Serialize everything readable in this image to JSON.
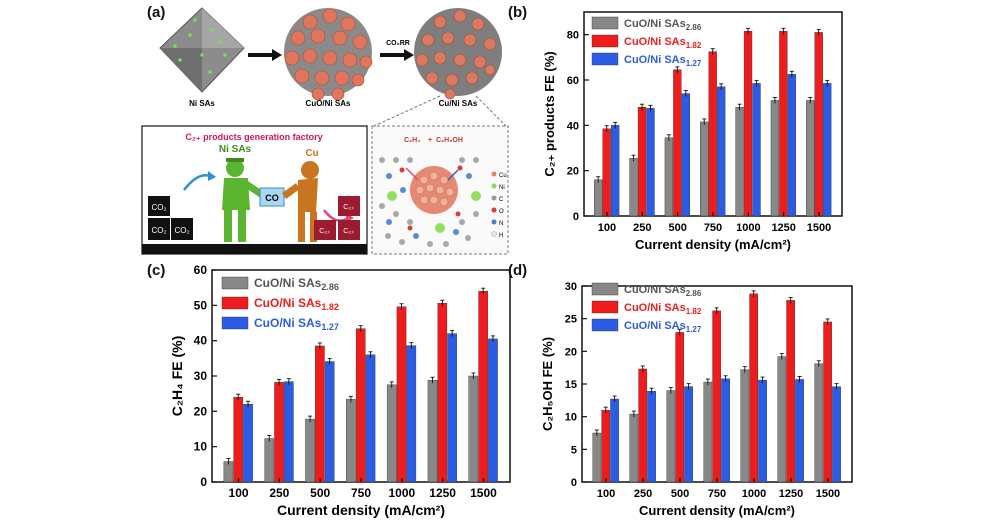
{
  "panels": {
    "a_label": "(a)",
    "b_label": "(b)",
    "c_label": "(c)",
    "d_label": "(d)"
  },
  "illustration": {
    "arrow_label": "CO₂RR",
    "caption_1": "Ni SAs",
    "caption_2": "CuO/Ni SAs",
    "caption_3": "Cu/Ni SAs",
    "factory_title": "C₂₊ products generation factory",
    "worker_1": "Ni SAs",
    "worker_2": "Cu",
    "co_box": "CO",
    "reactants": [
      "CO₂",
      "CO₂",
      "CO₂"
    ],
    "products": [
      "C₂₊",
      "C₂₊",
      "C₂₊"
    ],
    "zoom_formula_1": "C₂H₄",
    "zoom_plus": "+",
    "zoom_formula_2": "C₂H₅OH",
    "legend_atoms": [
      "Cu",
      "Ni",
      "C",
      "O",
      "N",
      "H"
    ],
    "atom_colors": [
      "#e8806a",
      "#8fd46a",
      "#9a9a9a",
      "#d93a3a",
      "#4a7cc9",
      "#e8e8e8"
    ]
  },
  "colors": {
    "gray": "#888888",
    "red": "#ee1c1c",
    "blue": "#2b5ce6"
  },
  "chart_data": [
    {
      "type": "bar",
      "panel": "(b)",
      "categories": [
        "100",
        "250",
        "500",
        "750",
        "1000",
        "1250",
        "1500"
      ],
      "xlabel": "Current density (mA/cm²)",
      "ylabel": "C₂₊ products FE (%)",
      "ylim": [
        0,
        90
      ],
      "yticks": [
        0,
        20,
        40,
        60,
        80
      ],
      "legend_position": "top-left",
      "series": [
        {
          "name": "CuO/Ni SAs",
          "subscript": "2.86",
          "color": "#888888",
          "values": [
            16,
            25.5,
            34.5,
            41.5,
            48,
            51,
            51
          ]
        },
        {
          "name": "CuO/Ni SAs",
          "subscript": "1.82",
          "color": "#ee1c1c",
          "values": [
            38.5,
            48,
            64.5,
            72.5,
            81.5,
            81.5,
            81
          ]
        },
        {
          "name": "CuO/Ni SAs",
          "subscript": "1.27",
          "color": "#2b5ce6",
          "values": [
            40,
            47.5,
            54,
            57,
            58.5,
            62.5,
            58.5
          ]
        }
      ]
    },
    {
      "type": "bar",
      "panel": "(c)",
      "categories": [
        "100",
        "250",
        "500",
        "750",
        "1000",
        "1250",
        "1500"
      ],
      "xlabel": "Current density (mA/cm²)",
      "ylabel": "C₂H₄ FE (%)",
      "ylim": [
        0,
        60
      ],
      "yticks": [
        0,
        10,
        20,
        30,
        40,
        50,
        60
      ],
      "legend_position": "top-left",
      "series": [
        {
          "name": "CuO/Ni SAs",
          "subscript": "2.86",
          "color": "#888888",
          "values": [
            5.8,
            12.3,
            17.8,
            23.4,
            27.5,
            28.8,
            30
          ]
        },
        {
          "name": "CuO/Ni SAs",
          "subscript": "1.82",
          "color": "#ee1c1c",
          "values": [
            24,
            28.2,
            38.5,
            43.4,
            49.6,
            50.6,
            54
          ]
        },
        {
          "name": "CuO/Ni SAs",
          "subscript": "1.27",
          "color": "#2b5ce6",
          "values": [
            22,
            28.4,
            34.1,
            36,
            38.6,
            42,
            40.5
          ]
        }
      ]
    },
    {
      "type": "bar",
      "panel": "(d)",
      "categories": [
        "100",
        "250",
        "500",
        "750",
        "1000",
        "1250",
        "1500"
      ],
      "xlabel": "Current density (mA/cm²)",
      "ylabel": "C₂H₅OH FE (%)",
      "ylim": [
        0,
        30
      ],
      "yticks": [
        0,
        5,
        10,
        15,
        20,
        25,
        30
      ],
      "legend_position": "top-left",
      "series": [
        {
          "name": "CuO/Ni SAs",
          "subscript": "2.86",
          "color": "#888888",
          "values": [
            7.5,
            10.4,
            14,
            15.3,
            17.2,
            19.2,
            18.1
          ]
        },
        {
          "name": "CuO/Ni SAs",
          "subscript": "1.82",
          "color": "#ee1c1c",
          "values": [
            11,
            17.3,
            22.9,
            26.2,
            28.8,
            27.8,
            24.5
          ]
        },
        {
          "name": "CuO/Ni SAs",
          "subscript": "1.27",
          "color": "#2b5ce6",
          "values": [
            12.7,
            13.9,
            14.6,
            15.8,
            15.6,
            15.7,
            14.6
          ]
        }
      ]
    }
  ]
}
